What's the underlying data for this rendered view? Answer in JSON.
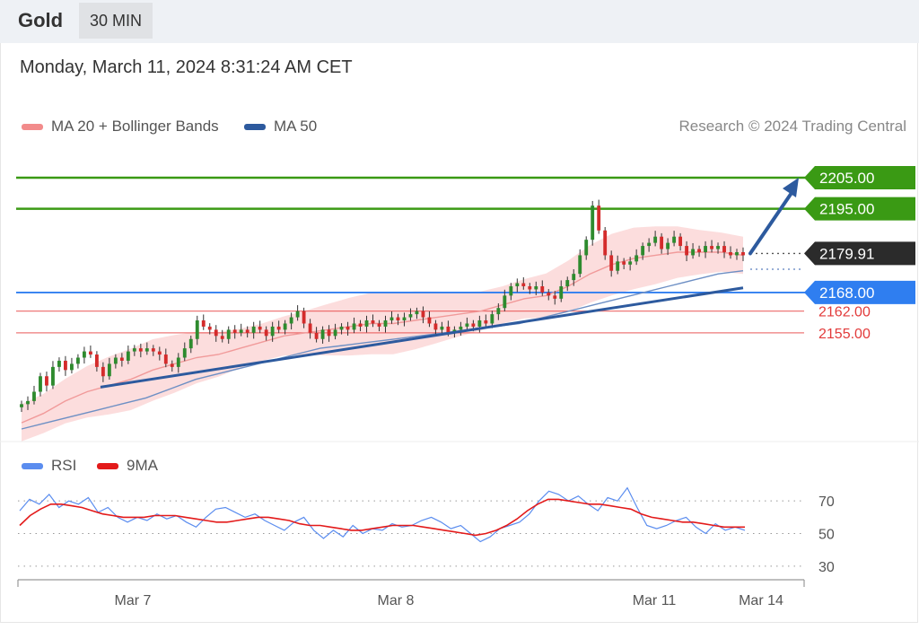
{
  "header": {
    "title": "Gold",
    "timeframe": "30 MIN"
  },
  "date": "Monday, March 11, 2024 8:31:24 AM CET",
  "legend": {
    "items": [
      {
        "label": "MA 20 + Bollinger Bands",
        "color": "#f28b8b"
      },
      {
        "label": "MA 50",
        "color": "#2d5a9e"
      }
    ],
    "credit": "Research © 2024 Trading Central"
  },
  "rsi_legend": [
    {
      "label": "RSI",
      "color": "#5b8def"
    },
    {
      "label": "9MA",
      "color": "#e31a1a"
    }
  ],
  "chart_data": [
    {
      "type": "candlestick",
      "ylim": [
        2124,
        2216
      ],
      "x_ticks": [
        "Mar 7",
        "Mar 8",
        "Mar 11",
        "Mar 14"
      ],
      "last_price": "2179.91",
      "levels": [
        {
          "value": 2205.0,
          "label": "2205.00",
          "kind": "resistance",
          "color": "#3a9a14"
        },
        {
          "value": 2195.0,
          "label": "2195.00",
          "kind": "resistance",
          "color": "#3a9a14"
        },
        {
          "value": 2168.0,
          "label": "2168.00",
          "kind": "pivot",
          "color": "#2f7ef0"
        },
        {
          "value": 2162.0,
          "label": "2162.00",
          "kind": "support",
          "color": "#e84040"
        },
        {
          "value": 2155.0,
          "label": "2155.00",
          "kind": "support",
          "color": "#e84040"
        }
      ],
      "close_path": [
        2132,
        2133,
        2136,
        2141,
        2138,
        2144,
        2146,
        2143,
        2145,
        2147,
        2149,
        2148,
        2144,
        2141,
        2145,
        2147,
        2146,
        2149,
        2150,
        2149,
        2150,
        2149,
        2148,
        2145,
        2144,
        2147,
        2150,
        2153,
        2159,
        2157,
        2156,
        2154,
        2153,
        2156,
        2155,
        2156,
        2155,
        2157,
        2156,
        2154,
        2157,
        2156,
        2158,
        2160,
        2162,
        2158,
        2155,
        2153,
        2156,
        2154,
        2156,
        2157,
        2156,
        2158,
        2157,
        2159,
        2158,
        2157,
        2159,
        2160,
        2159,
        2160,
        2161,
        2162,
        2160,
        2158,
        2156,
        2157,
        2155,
        2156,
        2157,
        2158,
        2157,
        2159,
        2158,
        2161,
        2163,
        2167,
        2170,
        2171,
        2170,
        2169,
        2170,
        2168,
        2167,
        2166,
        2170,
        2172,
        2174,
        2180,
        2185,
        2196,
        2188,
        2180,
        2175,
        2178,
        2177,
        2178,
        2180,
        2183,
        2184,
        2186,
        2182,
        2184,
        2186,
        2183,
        2180,
        2182,
        2181,
        2183,
        2182,
        2183,
        2181,
        2180,
        2181,
        2180
      ],
      "ma20_path": [
        2126,
        2129,
        2133,
        2136,
        2138,
        2140,
        2143,
        2145,
        2147,
        2148,
        2150,
        2152,
        2154,
        2155,
        2156,
        2157,
        2158,
        2158,
        2159,
        2160,
        2161,
        2162,
        2164,
        2166,
        2167,
        2170,
        2174,
        2177,
        2179,
        2180,
        2181,
        2181,
        2181,
        2180
      ],
      "ma50_path": [
        2124,
        2126,
        2128,
        2130,
        2132,
        2134,
        2137,
        2140,
        2142,
        2144,
        2146,
        2148,
        2150,
        2151,
        2152,
        2153,
        2154,
        2155,
        2156,
        2157,
        2158,
        2160,
        2162,
        2164,
        2166,
        2168,
        2170,
        2172,
        2174,
        2175
      ],
      "trendline": [
        [
          2137.5,
          0
        ],
        [
          2169.5,
          1
        ]
      ],
      "forecast_arrow": [
        2180,
        2205
      ]
    },
    {
      "type": "line",
      "name": "RSI panel",
      "ylim": [
        25,
        80
      ],
      "y_ticks": [
        70,
        50,
        30
      ],
      "series": [
        {
          "name": "RSI",
          "color": "#5b8def",
          "values": [
            64,
            71,
            68,
            74,
            66,
            70,
            68,
            72,
            63,
            66,
            60,
            57,
            60,
            58,
            62,
            59,
            61,
            57,
            54,
            60,
            65,
            66,
            63,
            60,
            62,
            58,
            55,
            52,
            57,
            60,
            52,
            47,
            52,
            48,
            55,
            50,
            53,
            52,
            56,
            54,
            55,
            58,
            60,
            57,
            53,
            55,
            50,
            45,
            48,
            53,
            55,
            57,
            62,
            70,
            76,
            74,
            70,
            73,
            68,
            64,
            72,
            70,
            78,
            66,
            55,
            53,
            55,
            58,
            60,
            54,
            50,
            56,
            52,
            54,
            52
          ]
        },
        {
          "name": "9MA",
          "color": "#e31a1a",
          "values": [
            55,
            61,
            65,
            68,
            68,
            67,
            66,
            64,
            62,
            61,
            60,
            60,
            60,
            61,
            61,
            61,
            60,
            59,
            58,
            57,
            57,
            58,
            59,
            60,
            60,
            59,
            58,
            56,
            55,
            55,
            54,
            53,
            52,
            52,
            53,
            54,
            55,
            55,
            55,
            54,
            53,
            52,
            51,
            50,
            49,
            50,
            52,
            55,
            59,
            64,
            68,
            71,
            71,
            70,
            69,
            68,
            68,
            67,
            66,
            65,
            62,
            60,
            59,
            58,
            57,
            57,
            56,
            55,
            54,
            54,
            54
          ]
        }
      ]
    }
  ]
}
